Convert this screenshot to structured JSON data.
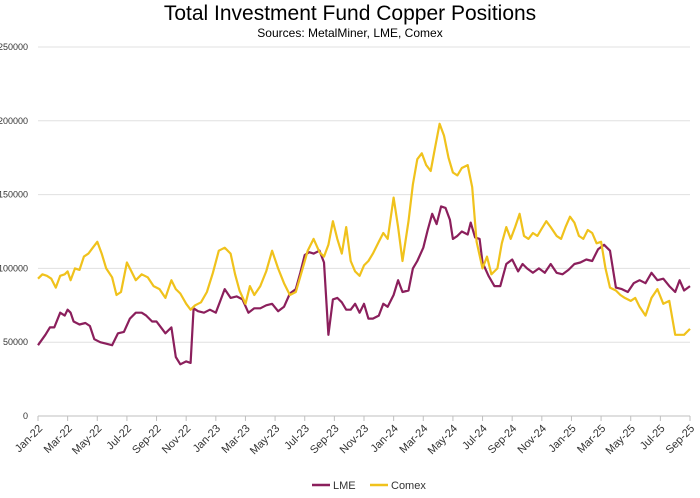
{
  "chart_data": {
    "type": "line",
    "title": "Total Investment Fund Copper Positions",
    "subtitle": "Sources: MetalMiner, LME, Comex",
    "ylim": [
      0,
      250000
    ],
    "y_ticks": [
      0,
      50000,
      100000,
      150000,
      200000,
      250000
    ],
    "y_tick_labels": [
      "0",
      "50000",
      "100000",
      "150000",
      "200000",
      "250000"
    ],
    "x_tick_labels": [
      "Jan-22",
      "Mar-22",
      "May-22",
      "Jul-22",
      "Sep-22",
      "Nov-22",
      "Jan-23",
      "Mar-23",
      "May-23",
      "Jul-23",
      "Sep-23",
      "Nov-23",
      "Jan-24",
      "Mar-24",
      "May-24",
      "Jul-24",
      "Sep-24",
      "Nov-24",
      "Jan-25",
      "Mar-25",
      "May-25",
      "Jul-25",
      "Sep-25"
    ],
    "grid": "horizontal",
    "legend_position": "bottom",
    "series": [
      {
        "name": "LME",
        "color": "#8b1f5c",
        "points": [
          [
            0,
            48000
          ],
          [
            0.5,
            55000
          ],
          [
            0.8,
            60000
          ],
          [
            1.1,
            60000
          ],
          [
            1.5,
            70000
          ],
          [
            1.8,
            68000
          ],
          [
            2.0,
            72000
          ],
          [
            2.2,
            70000
          ],
          [
            2.4,
            64000
          ],
          [
            2.8,
            62000
          ],
          [
            3.2,
            63000
          ],
          [
            3.5,
            61000
          ],
          [
            3.8,
            52000
          ],
          [
            4.2,
            50000
          ],
          [
            4.6,
            49000
          ],
          [
            5.0,
            48000
          ],
          [
            5.4,
            56000
          ],
          [
            5.8,
            57000
          ],
          [
            6.2,
            66000
          ],
          [
            6.6,
            70000
          ],
          [
            7.0,
            70000
          ],
          [
            7.3,
            68000
          ],
          [
            7.7,
            64000
          ],
          [
            8.0,
            64000
          ],
          [
            8.3,
            60000
          ],
          [
            8.6,
            56000
          ],
          [
            9.0,
            60000
          ],
          [
            9.3,
            40000
          ],
          [
            9.6,
            35000
          ],
          [
            10.0,
            37000
          ],
          [
            10.3,
            36000
          ],
          [
            10.5,
            73000
          ],
          [
            10.8,
            71000
          ],
          [
            11.2,
            70000
          ],
          [
            11.6,
            72000
          ],
          [
            12.0,
            70000
          ],
          [
            12.3,
            78000
          ],
          [
            12.6,
            86000
          ],
          [
            13.0,
            80000
          ],
          [
            13.4,
            81000
          ],
          [
            13.8,
            79000
          ],
          [
            14.2,
            70000
          ],
          [
            14.6,
            73000
          ],
          [
            15.0,
            73000
          ],
          [
            15.4,
            75000
          ],
          [
            15.8,
            76000
          ],
          [
            16.2,
            71000
          ],
          [
            16.6,
            74000
          ],
          [
            17.0,
            83000
          ],
          [
            17.4,
            86000
          ],
          [
            17.7,
            97000
          ],
          [
            18.0,
            109000
          ],
          [
            18.3,
            111000
          ],
          [
            18.6,
            110000
          ],
          [
            19.0,
            112000
          ],
          [
            19.3,
            104000
          ],
          [
            19.6,
            55000
          ],
          [
            19.9,
            79000
          ],
          [
            20.2,
            80000
          ],
          [
            20.5,
            77000
          ],
          [
            20.8,
            72000
          ],
          [
            21.1,
            72000
          ],
          [
            21.4,
            76000
          ],
          [
            21.7,
            70000
          ],
          [
            22.0,
            76000
          ],
          [
            22.3,
            66000
          ],
          [
            22.6,
            66000
          ],
          [
            23.0,
            68000
          ],
          [
            23.3,
            76000
          ],
          [
            23.6,
            74000
          ],
          [
            24.0,
            82000
          ],
          [
            24.3,
            92000
          ],
          [
            24.6,
            84000
          ],
          [
            25.0,
            85000
          ],
          [
            25.3,
            100000
          ],
          [
            25.6,
            105000
          ],
          [
            26.0,
            114000
          ],
          [
            26.3,
            126000
          ],
          [
            26.6,
            137000
          ],
          [
            26.9,
            130000
          ],
          [
            27.2,
            142000
          ],
          [
            27.5,
            141000
          ],
          [
            27.8,
            133000
          ],
          [
            28.0,
            120000
          ],
          [
            28.3,
            122000
          ],
          [
            28.6,
            125000
          ],
          [
            29.0,
            123000
          ],
          [
            29.2,
            131000
          ],
          [
            29.5,
            121000
          ],
          [
            29.8,
            120000
          ],
          [
            30.0,
            104000
          ],
          [
            30.4,
            95000
          ],
          [
            30.8,
            88000
          ],
          [
            31.2,
            88000
          ],
          [
            31.6,
            103000
          ],
          [
            32.0,
            106000
          ],
          [
            32.4,
            98000
          ],
          [
            32.7,
            103000
          ],
          [
            33.0,
            100000
          ],
          [
            33.4,
            97000
          ],
          [
            33.8,
            100000
          ],
          [
            34.2,
            97000
          ],
          [
            34.6,
            103000
          ],
          [
            35.0,
            97000
          ],
          [
            35.4,
            96000
          ],
          [
            35.8,
            99000
          ],
          [
            36.2,
            103000
          ],
          [
            36.6,
            104000
          ],
          [
            37.0,
            106000
          ],
          [
            37.4,
            105000
          ],
          [
            37.8,
            113000
          ],
          [
            38.2,
            116000
          ],
          [
            38.6,
            112000
          ],
          [
            39.0,
            87000
          ],
          [
            39.4,
            86000
          ],
          [
            39.8,
            84000
          ],
          [
            40.2,
            90000
          ],
          [
            40.6,
            92000
          ],
          [
            41.0,
            90000
          ],
          [
            41.4,
            97000
          ],
          [
            41.8,
            92000
          ],
          [
            42.2,
            93000
          ],
          [
            42.6,
            88000
          ],
          [
            43.0,
            84000
          ],
          [
            43.3,
            92000
          ],
          [
            43.6,
            85000
          ],
          [
            44.0,
            88000
          ]
        ]
      },
      {
        "name": "Comex",
        "color": "#f0c21c",
        "points": [
          [
            0,
            93000
          ],
          [
            0.3,
            96000
          ],
          [
            0.6,
            95000
          ],
          [
            0.9,
            93000
          ],
          [
            1.2,
            87000
          ],
          [
            1.5,
            95000
          ],
          [
            1.8,
            96000
          ],
          [
            2.0,
            98000
          ],
          [
            2.2,
            92000
          ],
          [
            2.5,
            100000
          ],
          [
            2.8,
            99000
          ],
          [
            3.1,
            108000
          ],
          [
            3.4,
            110000
          ],
          [
            3.7,
            114000
          ],
          [
            4.0,
            118000
          ],
          [
            4.3,
            110000
          ],
          [
            4.6,
            100000
          ],
          [
            5.0,
            94000
          ],
          [
            5.3,
            82000
          ],
          [
            5.6,
            84000
          ],
          [
            6.0,
            104000
          ],
          [
            6.3,
            98000
          ],
          [
            6.6,
            92000
          ],
          [
            7.0,
            96000
          ],
          [
            7.4,
            94000
          ],
          [
            7.8,
            88000
          ],
          [
            8.2,
            86000
          ],
          [
            8.6,
            80000
          ],
          [
            9.0,
            92000
          ],
          [
            9.3,
            86000
          ],
          [
            9.6,
            83000
          ],
          [
            10.0,
            76000
          ],
          [
            10.3,
            72000
          ],
          [
            10.6,
            75000
          ],
          [
            11.0,
            77000
          ],
          [
            11.4,
            84000
          ],
          [
            11.8,
            97000
          ],
          [
            12.2,
            112000
          ],
          [
            12.6,
            114000
          ],
          [
            13.0,
            110000
          ],
          [
            13.3,
            96000
          ],
          [
            13.6,
            85000
          ],
          [
            14.0,
            76000
          ],
          [
            14.3,
            88000
          ],
          [
            14.6,
            82000
          ],
          [
            15.0,
            88000
          ],
          [
            15.4,
            98000
          ],
          [
            15.8,
            112000
          ],
          [
            16.2,
            100000
          ],
          [
            16.6,
            90000
          ],
          [
            17.0,
            82000
          ],
          [
            17.4,
            84000
          ],
          [
            17.8,
            98000
          ],
          [
            18.2,
            112000
          ],
          [
            18.6,
            120000
          ],
          [
            19.0,
            111000
          ],
          [
            19.3,
            108000
          ],
          [
            19.6,
            116000
          ],
          [
            19.9,
            132000
          ],
          [
            20.2,
            120000
          ],
          [
            20.5,
            110000
          ],
          [
            20.8,
            128000
          ],
          [
            21.1,
            105000
          ],
          [
            21.4,
            98000
          ],
          [
            21.7,
            95000
          ],
          [
            22.0,
            102000
          ],
          [
            22.3,
            105000
          ],
          [
            22.6,
            110000
          ],
          [
            23.0,
            118000
          ],
          [
            23.3,
            124000
          ],
          [
            23.6,
            120000
          ],
          [
            24.0,
            148000
          ],
          [
            24.3,
            128000
          ],
          [
            24.6,
            105000
          ],
          [
            25.0,
            132000
          ],
          [
            25.3,
            157000
          ],
          [
            25.6,
            174000
          ],
          [
            25.9,
            178000
          ],
          [
            26.2,
            170000
          ],
          [
            26.5,
            166000
          ],
          [
            26.8,
            182000
          ],
          [
            27.1,
            198000
          ],
          [
            27.4,
            190000
          ],
          [
            27.7,
            175000
          ],
          [
            28.0,
            165000
          ],
          [
            28.3,
            163000
          ],
          [
            28.6,
            168000
          ],
          [
            29.0,
            170000
          ],
          [
            29.3,
            155000
          ],
          [
            29.6,
            118000
          ],
          [
            30.0,
            100000
          ],
          [
            30.3,
            108000
          ],
          [
            30.6,
            96000
          ],
          [
            31.0,
            100000
          ],
          [
            31.3,
            117000
          ],
          [
            31.6,
            128000
          ],
          [
            31.9,
            120000
          ],
          [
            32.2,
            128000
          ],
          [
            32.5,
            137000
          ],
          [
            32.8,
            122000
          ],
          [
            33.1,
            120000
          ],
          [
            33.4,
            124000
          ],
          [
            33.7,
            122000
          ],
          [
            34.0,
            127000
          ],
          [
            34.3,
            132000
          ],
          [
            34.6,
            128000
          ],
          [
            35.0,
            122000
          ],
          [
            35.3,
            120000
          ],
          [
            35.6,
            128000
          ],
          [
            35.9,
            135000
          ],
          [
            36.2,
            131000
          ],
          [
            36.5,
            122000
          ],
          [
            36.8,
            120000
          ],
          [
            37.1,
            126000
          ],
          [
            37.4,
            124000
          ],
          [
            37.7,
            117000
          ],
          [
            38.0,
            118000
          ],
          [
            38.3,
            100000
          ],
          [
            38.6,
            87000
          ],
          [
            39.0,
            85000
          ],
          [
            39.3,
            82000
          ],
          [
            39.6,
            80000
          ],
          [
            40.0,
            78000
          ],
          [
            40.3,
            80000
          ],
          [
            40.6,
            74000
          ],
          [
            41.0,
            68000
          ],
          [
            41.4,
            80000
          ],
          [
            41.8,
            86000
          ],
          [
            42.2,
            76000
          ],
          [
            42.6,
            78000
          ],
          [
            43.0,
            55000
          ],
          [
            43.3,
            55000
          ],
          [
            43.6,
            55000
          ],
          [
            44.0,
            59000
          ]
        ]
      }
    ]
  }
}
